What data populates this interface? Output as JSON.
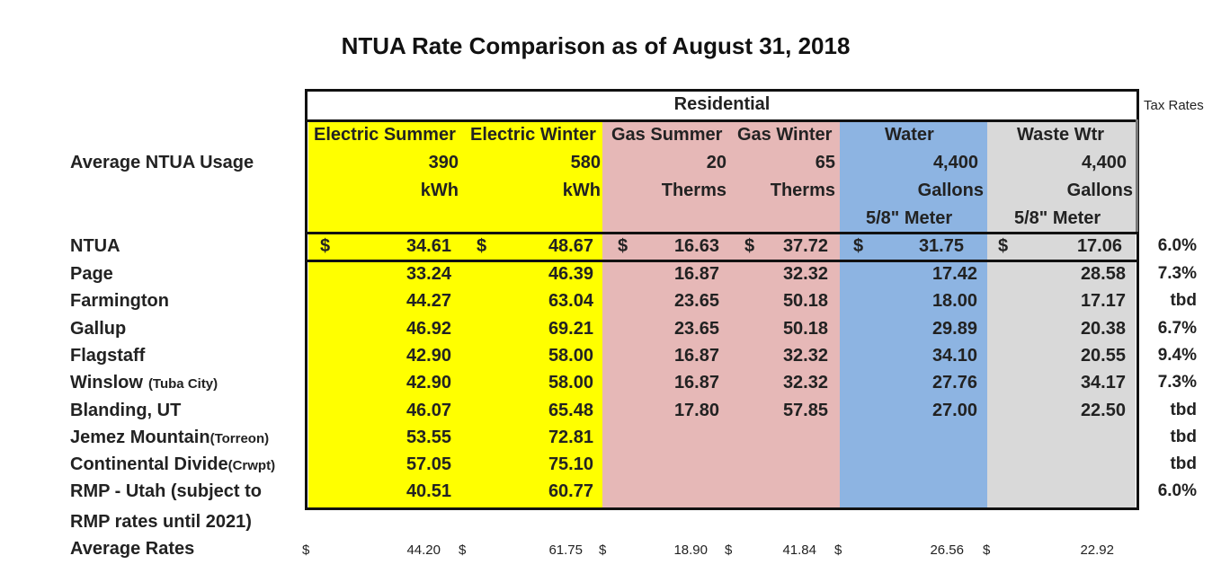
{
  "title": "NTUA Rate Comparison as of August 31, 2018",
  "section_header": "Residential",
  "tax_header": "Tax Rates",
  "columns": [
    "Electric Summer",
    "Electric Winter",
    "Gas Summer",
    "Gas Winter",
    "Water",
    "Waste Wtr"
  ],
  "usage": {
    "label": "Average NTUA Usage",
    "values": [
      "390",
      "580",
      "20",
      "65",
      "4,400",
      "4,400"
    ],
    "units": [
      "kWh",
      "kWh",
      "Therms",
      "Therms",
      "Gallons",
      "Gallons"
    ],
    "meter": [
      "",
      "",
      "",
      "",
      "5/8\" Meter",
      "5/8\" Meter"
    ]
  },
  "currency_symbol": "$",
  "ntua_row": {
    "label": "NTUA",
    "values": [
      "34.61",
      "48.67",
      "16.63",
      "37.72",
      "31.75",
      "17.06"
    ],
    "tax": "6.0%"
  },
  "rows": [
    {
      "label": "Page",
      "sub": "",
      "values": [
        "33.24",
        "46.39",
        "16.87",
        "32.32",
        "17.42",
        "28.58"
      ],
      "tax": "7.3%"
    },
    {
      "label": "Farmington",
      "sub": "",
      "values": [
        "44.27",
        "63.04",
        "23.65",
        "50.18",
        "18.00",
        "17.17"
      ],
      "tax": "tbd"
    },
    {
      "label": "Gallup",
      "sub": "",
      "values": [
        "46.92",
        "69.21",
        "23.65",
        "50.18",
        "29.89",
        "20.38"
      ],
      "tax": "6.7%"
    },
    {
      "label": "Flagstaff",
      "sub": "",
      "values": [
        "42.90",
        "58.00",
        "16.87",
        "32.32",
        "34.10",
        "20.55"
      ],
      "tax": "9.4%"
    },
    {
      "label": "Winslow",
      "sub": "(Tuba City)",
      "values": [
        "42.90",
        "58.00",
        "16.87",
        "32.32",
        "27.76",
        "34.17"
      ],
      "tax": "7.3%"
    },
    {
      "label": "Blanding, UT",
      "sub": "",
      "values": [
        "46.07",
        "65.48",
        "17.80",
        "57.85",
        "27.00",
        "22.50"
      ],
      "tax": "tbd"
    },
    {
      "label": "Jemez Mountain",
      "sub": "(Torreon)",
      "values": [
        "53.55",
        "72.81",
        "",
        "",
        "",
        ""
      ],
      "tax": "tbd"
    },
    {
      "label": "Continental Divide",
      "sub": "(Crwpt)",
      "values": [
        "57.05",
        "75.10",
        "",
        "",
        "",
        ""
      ],
      "tax": "tbd"
    },
    {
      "label": "RMP - Utah (subject to",
      "sub": "",
      "values": [
        "40.51",
        "60.77",
        "",
        "",
        "",
        ""
      ],
      "tax": "6.0%"
    }
  ],
  "rmp_note": "RMP rates until 2021)",
  "average_row": {
    "label": "Average Rates",
    "values": [
      "44.20",
      "61.75",
      "18.90",
      "41.84",
      "26.56",
      "22.92"
    ]
  },
  "colors": {
    "electric": "#ffff00",
    "gas": "#e6b8b7",
    "water": "#8db4e2",
    "waste_water": "#d9d9d9"
  }
}
